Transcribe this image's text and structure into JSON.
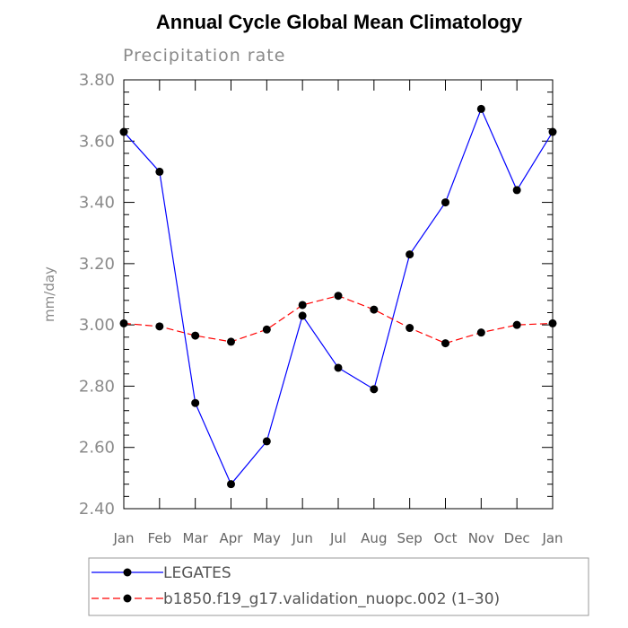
{
  "colors": {
    "legates": "#0000ff",
    "model": "#ff0000",
    "marker": "#000000",
    "axis": "#000000"
  },
  "chart_data": {
    "type": "line",
    "title": "Annual Cycle Global Mean Climatology",
    "subtitle": "Precipitation rate",
    "xlabel": "",
    "ylabel": "mm/day",
    "categories": [
      "Jan",
      "Feb",
      "Mar",
      "Apr",
      "May",
      "Jun",
      "Jul",
      "Aug",
      "Sep",
      "Oct",
      "Nov",
      "Dec",
      "Jan"
    ],
    "ylim": [
      2.4,
      3.8
    ],
    "yticks": [
      "2.40",
      "2.60",
      "2.80",
      "3.00",
      "3.20",
      "3.40",
      "3.60",
      "3.80"
    ],
    "ytick_values": [
      2.4,
      2.6,
      2.8,
      3.0,
      3.2,
      3.4,
      3.6,
      3.8
    ],
    "grid": false,
    "legend_position": "bottom",
    "series": [
      {
        "name": "LEGATES",
        "style": "solid",
        "values": [
          3.63,
          3.5,
          2.745,
          2.48,
          2.62,
          3.03,
          2.86,
          2.79,
          3.23,
          3.4,
          3.705,
          3.44,
          3.63
        ]
      },
      {
        "name": "b1850.f19_g17.validation_nuopc.002 (1–30)",
        "style": "dashed",
        "values": [
          3.005,
          2.995,
          2.965,
          2.945,
          2.985,
          3.065,
          3.095,
          3.05,
          2.99,
          2.94,
          2.975,
          3.0,
          3.005
        ]
      }
    ]
  }
}
